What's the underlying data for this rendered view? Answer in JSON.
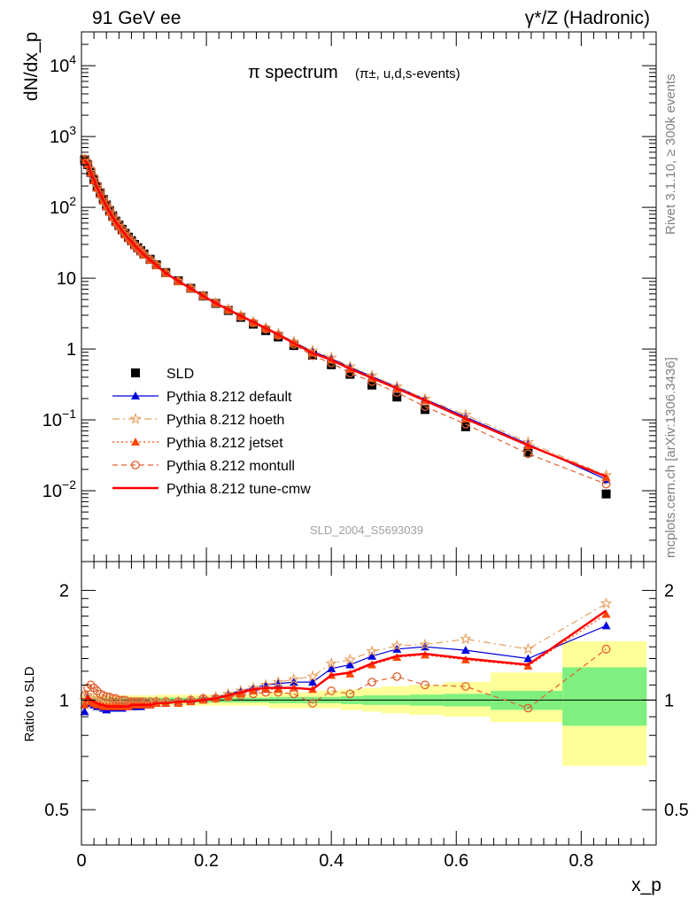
{
  "header": {
    "left": "91 GeV ee",
    "right": "γ*/Z (Hadronic)"
  },
  "side_labels": {
    "rivet": "Rivet 3.1.10, ≥ 300k events",
    "mcplots": "mcplots.cern.ch [arXiv:1306.3436]"
  },
  "chart_data": [
    {
      "type": "scatter",
      "panel": "main",
      "title_main": "π spectrum",
      "title_sub": "(π±, u,d,s-events)",
      "ylabel": "dN/dx_p",
      "yscale": "log",
      "ylim": [
        0.001,
        30000
      ],
      "xlim": [
        0,
        0.92
      ],
      "yticks": [
        {
          "value": 0.01,
          "label": "10^-2"
        },
        {
          "value": 0.1,
          "label": "10^-1"
        },
        {
          "value": 1,
          "label": "1"
        },
        {
          "value": 10,
          "label": "10"
        },
        {
          "value": 100,
          "label": "10^2"
        },
        {
          "value": 1000,
          "label": "10^3"
        },
        {
          "value": 10000,
          "label": "10^4"
        }
      ],
      "watermark": "SLD_2004_S5693039",
      "x": [
        0.005,
        0.01,
        0.015,
        0.02,
        0.025,
        0.03,
        0.035,
        0.04,
        0.045,
        0.05,
        0.055,
        0.06,
        0.065,
        0.07,
        0.075,
        0.08,
        0.085,
        0.09,
        0.095,
        0.1,
        0.11,
        0.12,
        0.135,
        0.155,
        0.175,
        0.195,
        0.215,
        0.235,
        0.255,
        0.275,
        0.295,
        0.315,
        0.34,
        0.37,
        0.4,
        0.43,
        0.465,
        0.505,
        0.55,
        0.615,
        0.715,
        0.84
      ],
      "legend": [
        {
          "label": "SLD",
          "color": "#000000",
          "marker": "square"
        },
        {
          "label": "Pythia 8.212 default",
          "color": "#0000dd",
          "marker": "triangle",
          "dash": "solid"
        },
        {
          "label": "Pythia 8.212 hoeth",
          "color": "#e8a060",
          "marker": "star",
          "dash": "dashdot"
        },
        {
          "label": "Pythia 8.212 jetset",
          "color": "#ff4500",
          "marker": "triangle",
          "dash": "dotted"
        },
        {
          "label": "Pythia 8.212 montull",
          "color": "#e06030",
          "marker": "circle",
          "dash": "dashed"
        },
        {
          "label": "Pythia 8.212 tune-cmw",
          "color": "#ff0000",
          "marker": "none",
          "dash": "solid"
        }
      ],
      "series": [
        {
          "name": "SLD",
          "values": [
            470,
            400,
            310,
            245,
            195,
            160,
            130,
            108,
            90,
            76,
            64,
            56,
            49,
            43,
            38,
            34,
            30,
            27,
            24.5,
            22,
            18.5,
            15.5,
            12,
            9.2,
            7.2,
            5.6,
            4.4,
            3.5,
            2.8,
            2.25,
            1.82,
            1.48,
            1.12,
            0.82,
            0.6,
            0.44,
            0.31,
            0.21,
            0.14,
            0.08,
            0.035,
            0.009
          ]
        },
        {
          "name": "Pythia 8.212 default",
          "ratio": [
            0.93,
            1.02,
            0.98,
            0.97,
            0.96,
            0.96,
            0.95,
            0.94,
            0.95,
            0.95,
            0.95,
            0.95,
            0.95,
            0.96,
            0.96,
            0.96,
            0.96,
            0.96,
            0.96,
            0.97,
            0.97,
            0.98,
            0.98,
            0.99,
            1.0,
            1.01,
            1.02,
            1.04,
            1.06,
            1.08,
            1.1,
            1.11,
            1.12,
            1.12,
            1.22,
            1.25,
            1.32,
            1.38,
            1.4,
            1.37,
            1.3,
            1.6
          ]
        },
        {
          "name": "Pythia 8.212 hoeth",
          "ratio": [
            1.0,
            1.03,
            1.01,
            1.0,
            0.99,
            0.98,
            0.97,
            0.97,
            0.97,
            0.97,
            0.97,
            0.97,
            0.97,
            0.97,
            0.97,
            0.98,
            0.98,
            0.98,
            0.98,
            0.98,
            0.98,
            0.99,
            0.99,
            0.99,
            1.0,
            1.01,
            1.02,
            1.04,
            1.06,
            1.08,
            1.1,
            1.12,
            1.14,
            1.16,
            1.26,
            1.29,
            1.36,
            1.41,
            1.42,
            1.47,
            1.38,
            1.84
          ]
        },
        {
          "name": "Pythia 8.212 jetset",
          "ratio": [
            0.97,
            1.01,
            0.99,
            0.98,
            0.97,
            0.97,
            0.96,
            0.96,
            0.96,
            0.96,
            0.96,
            0.96,
            0.96,
            0.96,
            0.96,
            0.97,
            0.97,
            0.97,
            0.97,
            0.97,
            0.97,
            0.98,
            0.98,
            0.98,
            0.99,
            1.0,
            1.01,
            1.02,
            1.04,
            1.06,
            1.07,
            1.07,
            1.08,
            1.07,
            1.17,
            1.18,
            1.25,
            1.31,
            1.33,
            1.29,
            1.24,
            1.72
          ]
        },
        {
          "name": "Pythia 8.212 montull",
          "ratio": [
            1.03,
            1.08,
            1.1,
            1.08,
            1.06,
            1.04,
            1.03,
            1.02,
            1.02,
            1.01,
            1.01,
            1.0,
            1.0,
            1.0,
            0.99,
            0.99,
            0.99,
            0.99,
            0.99,
            0.99,
            0.99,
            0.99,
            0.99,
            0.99,
            1.0,
            1.01,
            1.01,
            1.02,
            1.03,
            1.04,
            1.05,
            1.05,
            1.04,
            0.98,
            1.06,
            1.04,
            1.12,
            1.16,
            1.1,
            1.09,
            0.95,
            1.38
          ]
        },
        {
          "name": "Pythia 8.212 tune-cmw",
          "ratio": [
            0.99,
            1.02,
            1.0,
            0.99,
            0.98,
            0.97,
            0.97,
            0.96,
            0.96,
            0.96,
            0.96,
            0.96,
            0.96,
            0.96,
            0.96,
            0.97,
            0.97,
            0.97,
            0.97,
            0.97,
            0.97,
            0.98,
            0.98,
            0.99,
            0.99,
            1.0,
            1.01,
            1.03,
            1.05,
            1.07,
            1.08,
            1.08,
            1.08,
            1.07,
            1.17,
            1.19,
            1.26,
            1.32,
            1.34,
            1.3,
            1.25,
            1.76
          ]
        }
      ]
    },
    {
      "type": "scatter",
      "panel": "ratio",
      "ylabel": "Ratio to SLD",
      "xlabel": "x_p",
      "yscale": "log",
      "ylim": [
        0.4,
        2.4
      ],
      "xlim": [
        0,
        0.92
      ],
      "yticks": [
        {
          "value": 0.5,
          "label": "0.5"
        },
        {
          "value": 1,
          "label": "1"
        },
        {
          "value": 2,
          "label": "2"
        }
      ],
      "xticks": [
        {
          "value": 0,
          "label": "0"
        },
        {
          "value": 0.2,
          "label": "0.2"
        },
        {
          "value": 0.4,
          "label": "0.4"
        },
        {
          "value": 0.6,
          "label": "0.6"
        },
        {
          "value": 0.8,
          "label": "0.8"
        }
      ],
      "uncertainty_bands": [
        {
          "x0": 0.0,
          "x1": 0.12,
          "in_lo": 0.985,
          "in_hi": 1.015,
          "out_lo": 0.97,
          "out_hi": 1.03
        },
        {
          "x0": 0.12,
          "x1": 0.3,
          "in_lo": 0.985,
          "in_hi": 1.015,
          "out_lo": 0.965,
          "out_hi": 1.035
        },
        {
          "x0": 0.3,
          "x1": 0.38,
          "in_lo": 0.98,
          "in_hi": 1.02,
          "out_lo": 0.95,
          "out_hi": 1.05
        },
        {
          "x0": 0.38,
          "x1": 0.415,
          "in_lo": 0.98,
          "in_hi": 1.02,
          "out_lo": 0.95,
          "out_hi": 1.06
        },
        {
          "x0": 0.415,
          "x1": 0.45,
          "in_lo": 0.975,
          "in_hi": 1.025,
          "out_lo": 0.94,
          "out_hi": 1.07
        },
        {
          "x0": 0.45,
          "x1": 0.48,
          "in_lo": 0.97,
          "in_hi": 1.03,
          "out_lo": 0.93,
          "out_hi": 1.08
        },
        {
          "x0": 0.48,
          "x1": 0.525,
          "in_lo": 0.97,
          "in_hi": 1.03,
          "out_lo": 0.92,
          "out_hi": 1.09
        },
        {
          "x0": 0.525,
          "x1": 0.58,
          "in_lo": 0.965,
          "in_hi": 1.035,
          "out_lo": 0.91,
          "out_hi": 1.1
        },
        {
          "x0": 0.58,
          "x1": 0.655,
          "in_lo": 0.96,
          "in_hi": 1.04,
          "out_lo": 0.9,
          "out_hi": 1.12
        },
        {
          "x0": 0.655,
          "x1": 0.77,
          "in_lo": 0.94,
          "in_hi": 1.06,
          "out_lo": 0.87,
          "out_hi": 1.19
        },
        {
          "x0": 0.77,
          "x1": 0.905,
          "in_lo": 0.85,
          "in_hi": 1.23,
          "out_lo": 0.66,
          "out_hi": 1.45
        }
      ]
    }
  ]
}
